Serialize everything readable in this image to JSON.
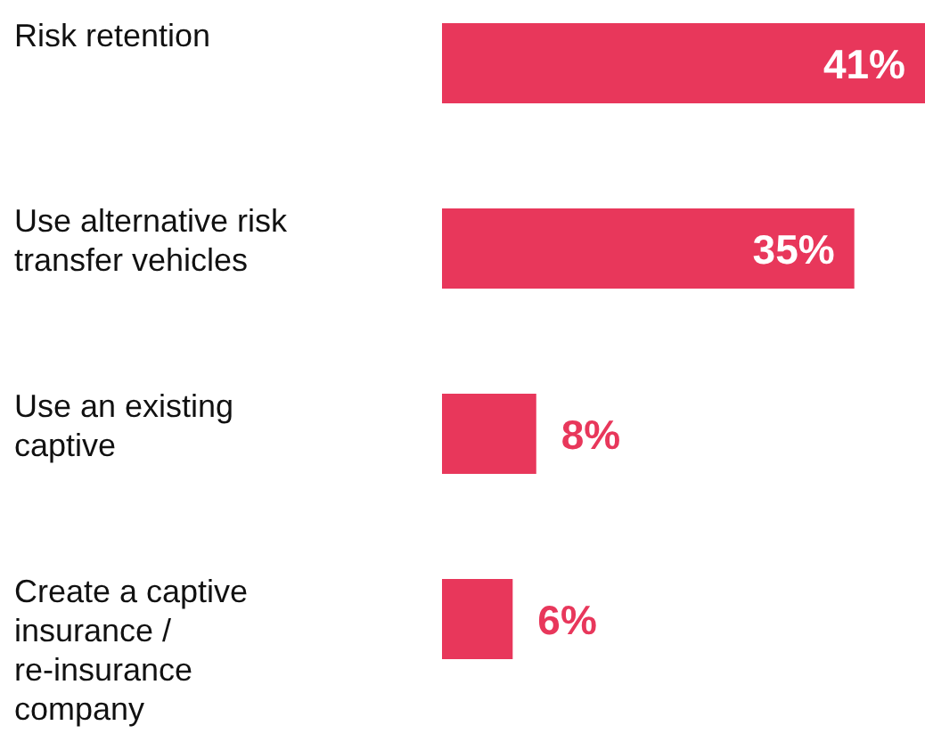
{
  "chart_data": {
    "type": "bar",
    "orientation": "horizontal",
    "categories": [
      "Risk retention",
      "Use alternative risk transfer vehicles",
      "Use an existing captive",
      "Create a captive insurance / re-insurance company"
    ],
    "values": [
      41,
      35,
      8,
      6
    ],
    "value_labels": [
      "41%",
      "35%",
      "8%",
      "6%"
    ],
    "color": "#e8375b"
  }
}
